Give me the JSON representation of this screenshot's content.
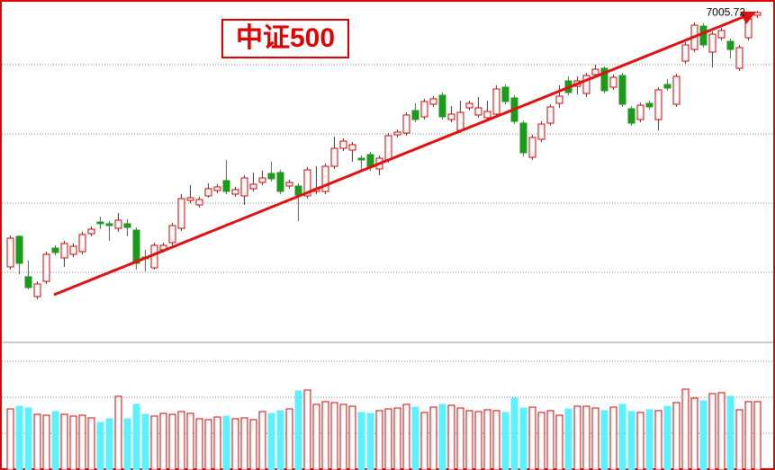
{
  "chart_data": {
    "type": "candlestick",
    "title": "中证500",
    "high_label": "7005.72",
    "ylim": [
      5902,
      7042
    ],
    "up_color": "#d40000",
    "down_color": "#1b9a1b",
    "open": [
      6151,
      6253,
      6118,
      6052,
      6103,
      6214,
      6181,
      6193,
      6202,
      6262,
      6301,
      6295,
      6280,
      6295,
      6274,
      6184,
      6148,
      6208,
      6232,
      6280,
      6373,
      6358,
      6388,
      6406,
      6439,
      6394,
      6388,
      6412,
      6433,
      6463,
      6466,
      6421,
      6421,
      6388,
      6403,
      6403,
      6487,
      6547,
      6541,
      6514,
      6526,
      6478,
      6508,
      6592,
      6598,
      6673,
      6652,
      6694,
      6724,
      6643,
      6607,
      6682,
      6658,
      6649,
      6661,
      6751,
      6715,
      6631,
      6517,
      6577,
      6631,
      6697,
      6772,
      6754,
      6730,
      6793,
      6814,
      6751,
      6790,
      6679,
      6643,
      6697,
      6643,
      6760,
      6694,
      6838,
      6877,
      6955,
      6868,
      6916,
      6904,
      6814,
      6916,
      6991
    ],
    "high": [
      6256,
      6256,
      6172,
      6103,
      6202,
      6223,
      6238,
      6229,
      6268,
      6286,
      6319,
      6304,
      6331,
      6310,
      6283,
      6208,
      6232,
      6232,
      6298,
      6394,
      6424,
      6385,
      6430,
      6427,
      6508,
      6418,
      6457,
      6466,
      6472,
      6502,
      6475,
      6442,
      6430,
      6484,
      6487,
      6496,
      6586,
      6580,
      6568,
      6523,
      6535,
      6523,
      6598,
      6610,
      6667,
      6697,
      6712,
      6721,
      6733,
      6688,
      6706,
      6706,
      6718,
      6706,
      6757,
      6760,
      6724,
      6640,
      6592,
      6637,
      6694,
      6757,
      6787,
      6787,
      6799,
      6826,
      6820,
      6793,
      6799,
      6688,
      6700,
      6706,
      6751,
      6778,
      6796,
      6901,
      6967,
      6964,
      6937,
      6949,
      6913,
      6892,
      6988,
      7005.72
    ],
    "low": [
      6142,
      6127,
      6076,
      6043,
      6094,
      6190,
      6151,
      6184,
      6193,
      6253,
      6277,
      6238,
      6268,
      6253,
      6142,
      6136,
      6142,
      6199,
      6223,
      6271,
      6364,
      6349,
      6382,
      6397,
      6394,
      6385,
      6358,
      6403,
      6424,
      6436,
      6394,
      6412,
      6304,
      6379,
      6394,
      6394,
      6478,
      6538,
      6502,
      6472,
      6472,
      6457,
      6499,
      6583,
      6589,
      6634,
      6643,
      6685,
      6643,
      6634,
      6598,
      6673,
      6649,
      6640,
      6652,
      6694,
      6628,
      6520,
      6508,
      6568,
      6622,
      6682,
      6724,
      6727,
      6718,
      6784,
      6730,
      6742,
      6685,
      6622,
      6634,
      6676,
      6607,
      6739,
      6685,
      6829,
      6868,
      6883,
      6817,
      6907,
      6847,
      6805,
      6907,
      6982
    ],
    "close": [
      6247,
      6163,
      6082,
      6094,
      6193,
      6199,
      6229,
      6220,
      6259,
      6277,
      6295,
      6289,
      6307,
      6283,
      6163,
      6178,
      6223,
      6223,
      6289,
      6379,
      6382,
      6376,
      6412,
      6418,
      6403,
      6409,
      6448,
      6427,
      6448,
      6445,
      6403,
      6433,
      6391,
      6475,
      6412,
      6487,
      6547,
      6571,
      6559,
      6508,
      6484,
      6514,
      6589,
      6601,
      6658,
      6643,
      6703,
      6712,
      6652,
      6661,
      6667,
      6697,
      6682,
      6670,
      6745,
      6703,
      6637,
      6532,
      6583,
      6628,
      6685,
      6721,
      6733,
      6772,
      6790,
      6811,
      6739,
      6784,
      6694,
      6631,
      6691,
      6685,
      6742,
      6748,
      6787,
      6892,
      6958,
      6892,
      6928,
      6940,
      6877,
      6883,
      6979,
      7000
    ],
    "volume": [
      68,
      71,
      69,
      62,
      61,
      65,
      62,
      60,
      61,
      58,
      53,
      57,
      82,
      57,
      73,
      62,
      60,
      63,
      62,
      65,
      63,
      57,
      56,
      59,
      60,
      57,
      58,
      56,
      65,
      63,
      66,
      68,
      88,
      89,
      73,
      76,
      75,
      73,
      71,
      64,
      63,
      66,
      68,
      69,
      73,
      70,
      64,
      70,
      73,
      72,
      69,
      66,
      65,
      67,
      66,
      64,
      80,
      69,
      70,
      64,
      66,
      61,
      68,
      71,
      71,
      69,
      66,
      70,
      73,
      65,
      64,
      67,
      66,
      71,
      75,
      90,
      80,
      77,
      85,
      86,
      82,
      67,
      76,
      76
    ],
    "vol_ylim": [
      0,
      140
    ]
  }
}
